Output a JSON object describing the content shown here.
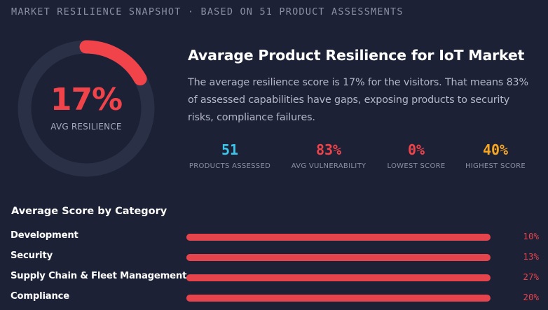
{
  "header": {
    "subtitle": "MARKET RESILIENCE SNAPSHOT · BASED ON 51 PRODUCT ASSESSMENTS"
  },
  "gauge": {
    "value_text": "17%",
    "value": 17,
    "label": "AVG RESILIENCE",
    "track_color": "#2a3046",
    "arc_color": "#f0434a"
  },
  "summary": {
    "title": "Avarage Product Resilience for IoT Market",
    "description": "The average resilience score is 17% for the visitors. That means 83% of assessed capabilities have gaps, exposing products to security risks, compliance failures."
  },
  "stats": [
    {
      "value": "51",
      "label": "PRODUCTS ASSESSED",
      "color": "#3ec5ea"
    },
    {
      "value": "83%",
      "label": "AVG VULNERABILITY",
      "color": "#f0434a"
    },
    {
      "value": "0%",
      "label": "LOWEST SCORE",
      "color": "#f0434a"
    },
    {
      "value": "40%",
      "label": "HIGHEST SCORE",
      "color": "#f5a623"
    }
  ],
  "categories": {
    "title": "Average Score by Category",
    "items": [
      {
        "name": "Development",
        "value_text": "10%",
        "value": 10
      },
      {
        "name": "Security",
        "value_text": "13%",
        "value": 13
      },
      {
        "name": "Supply Chain & Fleet Management",
        "value_text": "27%",
        "value": 27
      },
      {
        "name": "Compliance",
        "value_text": "20%",
        "value": 20
      }
    ]
  }
}
